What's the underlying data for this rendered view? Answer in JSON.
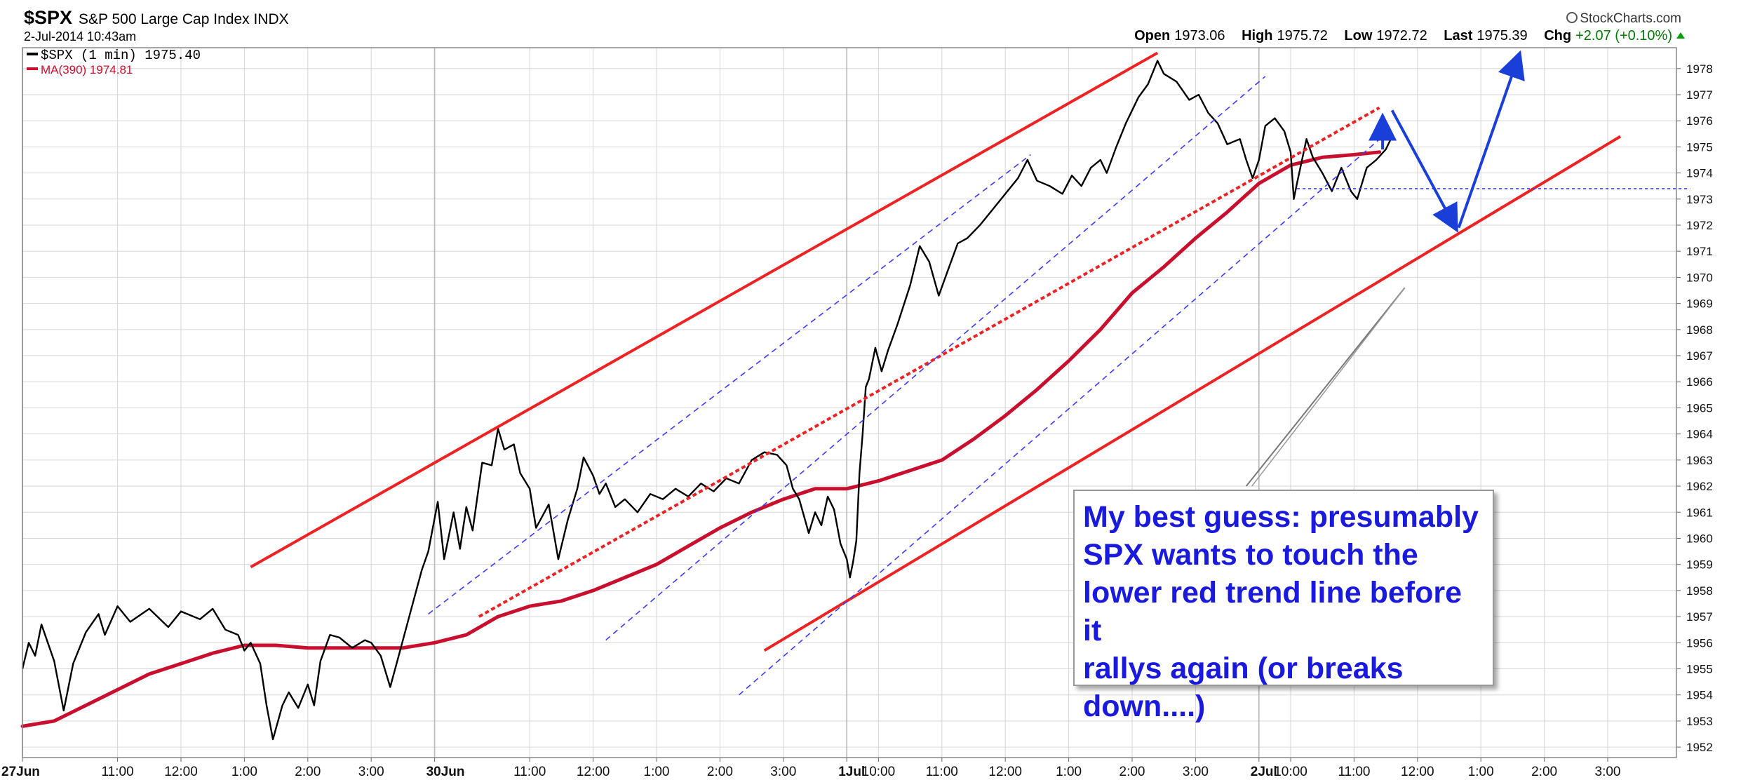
{
  "header": {
    "symbol": "$SPX",
    "name": "S&P 500 Large Cap Index",
    "exchange": "INDX",
    "datetime": "2-Jul-2014 10:43am",
    "brand": "StockCharts.com",
    "open_label": "Open",
    "open": "1973.06",
    "high_label": "High",
    "high": "1975.72",
    "low_label": "Low",
    "low": "1972.72",
    "last_label": "Last",
    "last": "1975.39",
    "chg_label": "Chg",
    "chg": "+2.07 (+0.10%)"
  },
  "legend": {
    "price": "$SPX (1 min) 1975.40",
    "ma": "MA(390) 1974.81"
  },
  "annotation": {
    "text": "My best guess: presumably\nSPX wants to touch the\nlower red trend line before it\nrallys again (or breaks\ndown....)"
  },
  "colors": {
    "price": "#000000",
    "ma": "#c8102e",
    "trend_red": "#ee2222",
    "channel_blue": "#3b3bff",
    "arrow_blue": "#1a3fd8",
    "grid": "#d6d6d6"
  },
  "chart_data": {
    "type": "line",
    "x_unit": "trading hour (0 = 27 Jun 9:30, one session = 6.5 h; extends into projected time)",
    "ylim": [
      1951.6,
      1978.8
    ],
    "y_ticks": [
      1952,
      1953,
      1954,
      1955,
      1956,
      1957,
      1958,
      1959,
      1960,
      1961,
      1962,
      1963,
      1964,
      1965,
      1966,
      1967,
      1968,
      1969,
      1970,
      1971,
      1972,
      1973,
      1974,
      1975,
      1976,
      1977,
      1978
    ],
    "x_ticks": [
      {
        "x": 0.0,
        "label": "27Jun",
        "bold": true
      },
      {
        "x": 1.5,
        "label": "11:00"
      },
      {
        "x": 2.5,
        "label": "12:00"
      },
      {
        "x": 3.5,
        "label": "1:00"
      },
      {
        "x": 4.5,
        "label": "2:00"
      },
      {
        "x": 5.5,
        "label": "3:00"
      },
      {
        "x": 6.5,
        "label": "30Jun",
        "bold": true
      },
      {
        "x": 8.0,
        "label": "11:00"
      },
      {
        "x": 9.0,
        "label": "12:00"
      },
      {
        "x": 10.0,
        "label": "1:00"
      },
      {
        "x": 11.0,
        "label": "2:00"
      },
      {
        "x": 12.0,
        "label": "3:00"
      },
      {
        "x": 13.0,
        "label": "1Jul",
        "bold": true
      },
      {
        "x": 13.5,
        "label": "10:00"
      },
      {
        "x": 14.5,
        "label": "11:00"
      },
      {
        "x": 15.5,
        "label": "12:00"
      },
      {
        "x": 16.5,
        "label": "1:00"
      },
      {
        "x": 17.5,
        "label": "2:00"
      },
      {
        "x": 18.5,
        "label": "3:00"
      },
      {
        "x": 19.5,
        "label": "2Jul",
        "bold": true
      },
      {
        "x": 20.0,
        "label": "10:00"
      },
      {
        "x": 21.0,
        "label": "11:00"
      },
      {
        "x": 22.0,
        "label": "12:00"
      },
      {
        "x": 23.0,
        "label": "1:00"
      },
      {
        "x": 24.0,
        "label": "2:00"
      },
      {
        "x": 25.0,
        "label": "3:00"
      }
    ],
    "series": [
      {
        "name": "$SPX (1 min)",
        "points": [
          [
            0.0,
            1955.0
          ],
          [
            0.1,
            1956.0
          ],
          [
            0.2,
            1955.5
          ],
          [
            0.3,
            1956.7
          ],
          [
            0.5,
            1955.3
          ],
          [
            0.65,
            1953.4
          ],
          [
            0.8,
            1955.2
          ],
          [
            1.0,
            1956.4
          ],
          [
            1.2,
            1957.1
          ],
          [
            1.3,
            1956.3
          ],
          [
            1.5,
            1957.4
          ],
          [
            1.7,
            1956.8
          ],
          [
            2.0,
            1957.3
          ],
          [
            2.3,
            1956.6
          ],
          [
            2.5,
            1957.2
          ],
          [
            2.8,
            1956.9
          ],
          [
            3.0,
            1957.3
          ],
          [
            3.2,
            1956.5
          ],
          [
            3.4,
            1956.3
          ],
          [
            3.5,
            1955.7
          ],
          [
            3.6,
            1956.0
          ],
          [
            3.75,
            1955.2
          ],
          [
            3.85,
            1953.6
          ],
          [
            3.95,
            1952.3
          ],
          [
            4.1,
            1953.6
          ],
          [
            4.2,
            1954.1
          ],
          [
            4.35,
            1953.5
          ],
          [
            4.5,
            1954.4
          ],
          [
            4.6,
            1953.6
          ],
          [
            4.7,
            1955.3
          ],
          [
            4.85,
            1956.3
          ],
          [
            5.0,
            1956.2
          ],
          [
            5.2,
            1955.8
          ],
          [
            5.4,
            1956.1
          ],
          [
            5.5,
            1956.0
          ],
          [
            5.65,
            1955.5
          ],
          [
            5.8,
            1954.3
          ],
          [
            5.9,
            1955.2
          ],
          [
            6.1,
            1957.0
          ],
          [
            6.3,
            1958.8
          ],
          [
            6.4,
            1959.5
          ],
          [
            6.55,
            1961.4
          ],
          [
            6.65,
            1959.2
          ],
          [
            6.8,
            1961.0
          ],
          [
            6.9,
            1959.6
          ],
          [
            7.0,
            1961.2
          ],
          [
            7.1,
            1960.3
          ],
          [
            7.25,
            1962.9
          ],
          [
            7.4,
            1962.8
          ],
          [
            7.5,
            1964.2
          ],
          [
            7.6,
            1963.4
          ],
          [
            7.75,
            1963.6
          ],
          [
            7.85,
            1962.5
          ],
          [
            8.0,
            1961.9
          ],
          [
            8.1,
            1960.4
          ],
          [
            8.3,
            1961.3
          ],
          [
            8.45,
            1959.2
          ],
          [
            8.6,
            1960.7
          ],
          [
            8.75,
            1961.9
          ],
          [
            8.85,
            1963.1
          ],
          [
            9.0,
            1962.4
          ],
          [
            9.1,
            1961.7
          ],
          [
            9.2,
            1962.1
          ],
          [
            9.35,
            1961.2
          ],
          [
            9.5,
            1961.5
          ],
          [
            9.7,
            1961.0
          ],
          [
            9.9,
            1961.7
          ],
          [
            10.1,
            1961.5
          ],
          [
            10.3,
            1961.9
          ],
          [
            10.5,
            1961.6
          ],
          [
            10.7,
            1962.1
          ],
          [
            10.9,
            1961.8
          ],
          [
            11.1,
            1962.3
          ],
          [
            11.3,
            1962.1
          ],
          [
            11.5,
            1963.0
          ],
          [
            11.7,
            1963.3
          ],
          [
            11.9,
            1963.2
          ],
          [
            12.05,
            1962.8
          ],
          [
            12.15,
            1961.9
          ],
          [
            12.25,
            1961.5
          ],
          [
            12.4,
            1960.2
          ],
          [
            12.5,
            1961.0
          ],
          [
            12.6,
            1960.5
          ],
          [
            12.7,
            1961.6
          ],
          [
            12.8,
            1961.1
          ],
          [
            12.9,
            1959.8
          ],
          [
            13.0,
            1959.2
          ],
          [
            13.05,
            1958.5
          ],
          [
            13.1,
            1959.1
          ],
          [
            13.15,
            1959.9
          ],
          [
            13.2,
            1962.5
          ],
          [
            13.25,
            1964.0
          ],
          [
            13.3,
            1965.8
          ],
          [
            13.35,
            1966.1
          ],
          [
            13.45,
            1967.3
          ],
          [
            13.55,
            1966.4
          ],
          [
            13.65,
            1967.2
          ],
          [
            13.8,
            1968.2
          ],
          [
            14.0,
            1969.7
          ],
          [
            14.15,
            1971.2
          ],
          [
            14.3,
            1970.6
          ],
          [
            14.45,
            1969.3
          ],
          [
            14.6,
            1970.3
          ],
          [
            14.75,
            1971.3
          ],
          [
            14.9,
            1971.5
          ],
          [
            15.1,
            1972.0
          ],
          [
            15.3,
            1972.6
          ],
          [
            15.5,
            1973.2
          ],
          [
            15.7,
            1973.8
          ],
          [
            15.85,
            1974.5
          ],
          [
            16.0,
            1973.7
          ],
          [
            16.2,
            1973.5
          ],
          [
            16.4,
            1973.2
          ],
          [
            16.55,
            1973.9
          ],
          [
            16.7,
            1973.5
          ],
          [
            16.85,
            1974.2
          ],
          [
            17.0,
            1974.5
          ],
          [
            17.1,
            1974.0
          ],
          [
            17.25,
            1975.0
          ],
          [
            17.4,
            1975.9
          ],
          [
            17.5,
            1976.4
          ],
          [
            17.6,
            1976.9
          ],
          [
            17.75,
            1977.4
          ],
          [
            17.9,
            1978.3
          ],
          [
            18.0,
            1977.8
          ],
          [
            18.2,
            1977.5
          ],
          [
            18.4,
            1976.8
          ],
          [
            18.55,
            1977.0
          ],
          [
            18.7,
            1976.3
          ],
          [
            18.85,
            1975.9
          ],
          [
            19.0,
            1975.1
          ],
          [
            19.2,
            1975.3
          ],
          [
            19.3,
            1974.5
          ],
          [
            19.4,
            1973.8
          ],
          [
            19.5,
            1974.5
          ],
          [
            19.6,
            1975.8
          ],
          [
            19.75,
            1976.1
          ],
          [
            19.9,
            1975.6
          ],
          [
            20.0,
            1974.8
          ],
          [
            20.05,
            1973.0
          ],
          [
            20.1,
            1973.6
          ],
          [
            20.25,
            1975.3
          ],
          [
            20.35,
            1974.6
          ],
          [
            20.5,
            1974.0
          ],
          [
            20.65,
            1973.3
          ],
          [
            20.8,
            1974.2
          ],
          [
            20.95,
            1973.3
          ],
          [
            21.05,
            1973.0
          ],
          [
            21.2,
            1974.2
          ],
          [
            21.35,
            1974.5
          ],
          [
            21.5,
            1974.9
          ],
          [
            21.6,
            1975.4
          ]
        ]
      },
      {
        "name": "MA(390)",
        "points": [
          [
            0.0,
            1952.8
          ],
          [
            0.5,
            1953.0
          ],
          [
            1.0,
            1953.6
          ],
          [
            1.5,
            1954.2
          ],
          [
            2.0,
            1954.8
          ],
          [
            2.5,
            1955.2
          ],
          [
            3.0,
            1955.6
          ],
          [
            3.5,
            1955.9
          ],
          [
            4.0,
            1955.9
          ],
          [
            4.5,
            1955.8
          ],
          [
            5.0,
            1955.8
          ],
          [
            5.5,
            1955.8
          ],
          [
            6.0,
            1955.8
          ],
          [
            6.5,
            1956.0
          ],
          [
            7.0,
            1956.3
          ],
          [
            7.5,
            1957.0
          ],
          [
            8.0,
            1957.4
          ],
          [
            8.5,
            1957.6
          ],
          [
            9.0,
            1958.0
          ],
          [
            9.5,
            1958.5
          ],
          [
            10.0,
            1959.0
          ],
          [
            10.5,
            1959.7
          ],
          [
            11.0,
            1960.4
          ],
          [
            11.5,
            1961.0
          ],
          [
            12.0,
            1961.5
          ],
          [
            12.5,
            1961.9
          ],
          [
            13.0,
            1961.9
          ],
          [
            13.5,
            1962.2
          ],
          [
            14.0,
            1962.6
          ],
          [
            14.5,
            1963.0
          ],
          [
            15.0,
            1963.8
          ],
          [
            15.5,
            1964.7
          ],
          [
            16.0,
            1965.7
          ],
          [
            16.5,
            1966.8
          ],
          [
            17.0,
            1968.0
          ],
          [
            17.5,
            1969.4
          ],
          [
            18.0,
            1970.4
          ],
          [
            18.5,
            1971.5
          ],
          [
            19.0,
            1972.5
          ],
          [
            19.5,
            1973.6
          ],
          [
            20.0,
            1974.3
          ],
          [
            20.5,
            1974.6
          ],
          [
            21.0,
            1974.7
          ],
          [
            21.4,
            1974.8
          ]
        ]
      }
    ],
    "trendlines": [
      {
        "style": "red-solid",
        "from": [
          3.6,
          1958.9
        ],
        "to": [
          17.9,
          1978.6
        ]
      },
      {
        "style": "red-solid",
        "from": [
          11.7,
          1955.7
        ],
        "to": [
          25.2,
          1975.4
        ]
      },
      {
        "style": "red-dotted",
        "from": [
          7.2,
          1957.0
        ],
        "to": [
          21.4,
          1976.5
        ]
      },
      {
        "style": "blue-dashed",
        "from": [
          6.4,
          1957.1
        ],
        "to": [
          15.9,
          1974.7
        ]
      },
      {
        "style": "blue-dashed",
        "from": [
          9.2,
          1956.1
        ],
        "to": [
          19.6,
          1977.7
        ]
      },
      {
        "style": "blue-dashed",
        "from": [
          11.3,
          1954.0
        ],
        "to": [
          21.5,
          1975.5
        ]
      },
      {
        "style": "blue-dotted-horizontal",
        "from": [
          20.1,
          1973.4
        ],
        "to": [
          26.3,
          1973.4
        ]
      },
      {
        "style": "grey-pointer",
        "from": [
          19.3,
          1962.0
        ],
        "to": [
          21.8,
          1969.6
        ]
      }
    ],
    "arrows": [
      {
        "from": [
          21.45,
          1974.9
        ],
        "to": [
          21.45,
          1976.1
        ]
      },
      {
        "from": [
          21.6,
          1976.4
        ],
        "to": [
          22.6,
          1971.9
        ]
      },
      {
        "from": [
          22.65,
          1971.9
        ],
        "to": [
          23.6,
          1978.5
        ]
      }
    ]
  }
}
